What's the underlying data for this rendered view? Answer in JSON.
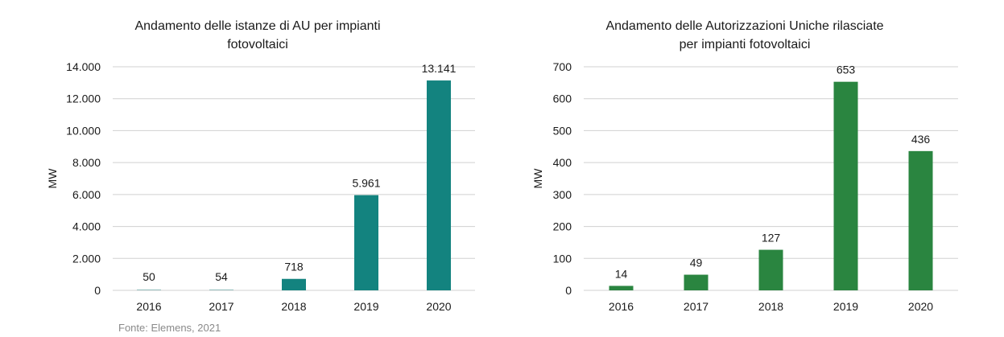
{
  "source_note": "Fonte: Elemens, 2021",
  "chart_data": [
    {
      "type": "bar",
      "title_lines": [
        "Andamento delle istanze di AU per impianti",
        "fotovoltaici"
      ],
      "ylabel": "MW",
      "categories": [
        "2016",
        "2017",
        "2018",
        "2019",
        "2020"
      ],
      "values": [
        50,
        54,
        718,
        5961,
        13141
      ],
      "value_labels": [
        "50",
        "54",
        "718",
        "5.961",
        "13.141"
      ],
      "yticks": [
        0,
        2000,
        4000,
        6000,
        8000,
        10000,
        12000,
        14000
      ],
      "ytick_labels": [
        "0",
        "2.000",
        "4.000",
        "6.000",
        "8.000",
        "10.000",
        "12.000",
        "14.000"
      ],
      "ylim": [
        0,
        14000
      ],
      "grid": true,
      "color": "#13837f"
    },
    {
      "type": "bar",
      "title_lines": [
        "Andamento delle Autorizzazioni Uniche rilasciate",
        "per impianti fotovoltaici"
      ],
      "ylabel": "MW",
      "categories": [
        "2016",
        "2017",
        "2018",
        "2019",
        "2020"
      ],
      "values": [
        14,
        49,
        127,
        653,
        436
      ],
      "value_labels": [
        "14",
        "49",
        "127",
        "653",
        "436"
      ],
      "yticks": [
        0,
        100,
        200,
        300,
        400,
        500,
        600,
        700
      ],
      "ytick_labels": [
        "0",
        "100",
        "200",
        "300",
        "400",
        "500",
        "600",
        "700"
      ],
      "ylim": [
        0,
        700
      ],
      "grid": true,
      "color": "#2a8540"
    }
  ]
}
